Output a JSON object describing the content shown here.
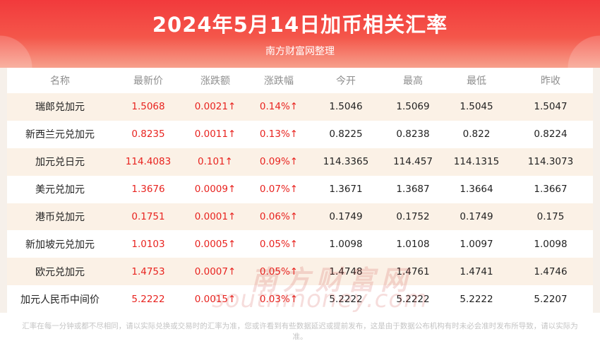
{
  "header": {
    "title": "2024年5月14日加币相关汇率",
    "subtitle": "南方财富网整理"
  },
  "table": {
    "columns": [
      "名称",
      "最新价",
      "涨跌额",
      "涨跌幅",
      "今开",
      "最高",
      "最低",
      "昨收"
    ],
    "rows": [
      [
        "瑞郎兑加元",
        "1.5068",
        "0.0021↑",
        "0.14%↑",
        "1.5046",
        "1.5069",
        "1.5045",
        "1.5047"
      ],
      [
        "新西兰元兑加元",
        "0.8235",
        "0.0011↑",
        "0.13%↑",
        "0.8225",
        "0.8238",
        "0.822",
        "0.8224"
      ],
      [
        "加元兑日元",
        "114.4083",
        "0.101↑",
        "0.09%↑",
        "114.3365",
        "114.457",
        "114.1315",
        "114.3073"
      ],
      [
        "美元兑加元",
        "1.3676",
        "0.0009↑",
        "0.07%↑",
        "1.3671",
        "1.3687",
        "1.3664",
        "1.3667"
      ],
      [
        "港币兑加元",
        "0.1751",
        "0.0001↑",
        "0.06%↑",
        "0.1749",
        "0.1752",
        "0.1749",
        "0.175"
      ],
      [
        "新加坡元兑加元",
        "1.0103",
        "0.0005↑",
        "0.05%↑",
        "1.0098",
        "1.0108",
        "1.0097",
        "1.0098"
      ],
      [
        "欧元兑加元",
        "1.4753",
        "0.0007↑",
        "0.05%↑",
        "1.4748",
        "1.4761",
        "1.4741",
        "1.4746"
      ],
      [
        "加元人民币中间价",
        "5.2222",
        "0.0015↑",
        "0.03%↑",
        "5.2222",
        "5.2222",
        "5.2222",
        "5.2207"
      ]
    ]
  },
  "watermark": {
    "cn": "南方财富网",
    "en": "southmoney.com"
  },
  "footer": {
    "disclaimer": "汇率在每一分钟或都不尽相同，请以实际兑换或交易时的汇率为准，您或许看到有些数据延迟或提前发布，这是由于数据公布机构有时未必会准时发布所导致，请以实际为准。"
  },
  "colors": {
    "up": "#e8231f",
    "header_top": "#f23a3c",
    "row_stripe": "#fbf1e6"
  }
}
